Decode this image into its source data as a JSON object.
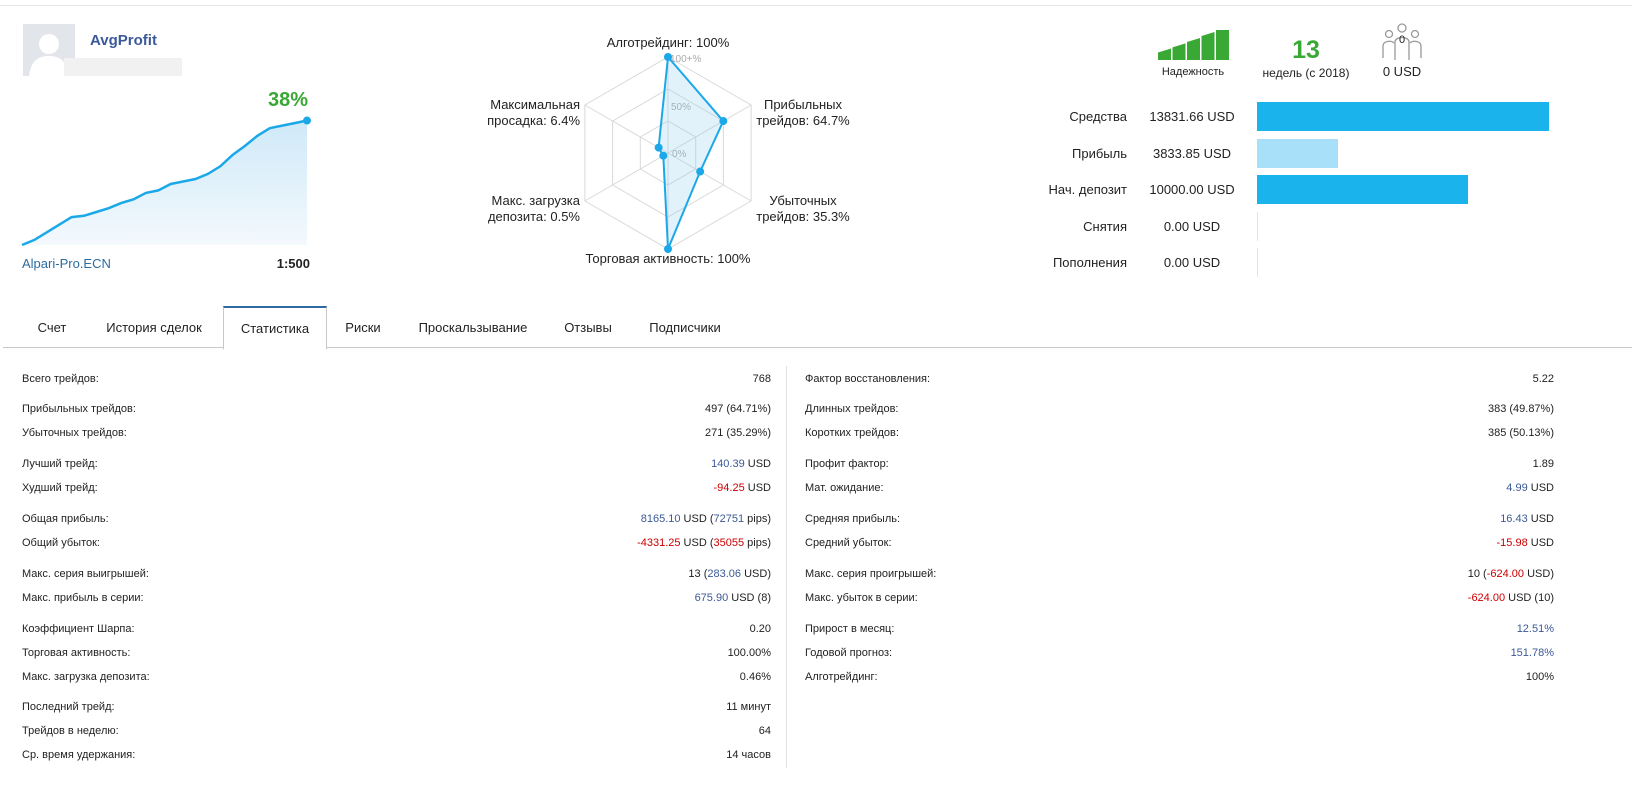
{
  "profile": {
    "name": "AvgProfit",
    "growth": "38%",
    "broker": "Alpari-Pro.ECN",
    "leverage": "1:500"
  },
  "growth_curve": {
    "values": [
      0,
      4,
      10,
      16,
      22,
      23,
      26,
      29,
      33,
      36,
      41,
      43,
      48,
      50,
      52,
      56,
      62,
      71,
      78,
      86,
      92,
      94,
      96,
      98
    ]
  },
  "radar": {
    "labels": {
      "algo": "Алготрейдинг: 100%",
      "profit_l1": "Прибыльных",
      "profit_l2": "трейдов: 64.7%",
      "loss_l1": "Убыточных",
      "loss_l2": "трейдов: 35.3%",
      "activity": "Торговая активность: 100%",
      "load_l1": "Макс. загрузка",
      "load_l2": "депозита: 0.5%",
      "dd_l1": "Максимальная",
      "dd_l2": "просадка: 6.4%"
    },
    "scale": {
      "top": "100+%",
      "mid": "50%",
      "zero": "0%"
    },
    "values": [
      1.0,
      0.647,
      0.353,
      1.0,
      0.005,
      0.064
    ]
  },
  "reliability": {
    "label": "Надежность",
    "level": 5,
    "max": 5,
    "color": "#3aa835"
  },
  "weeks": {
    "value": "13",
    "label": "недель (с 2018)"
  },
  "subscribers": {
    "count": "0",
    "label": "0 USD",
    "icon": "subscribers-icon"
  },
  "bars": [
    {
      "label": "Средства",
      "value": "13831.66 USD",
      "amount": 13831.66,
      "color": "#1bb3ec"
    },
    {
      "label": "Прибыль",
      "value": "3833.85 USD",
      "amount": 3833.85,
      "color": "#a7e0f8"
    },
    {
      "label": "Нач. депозит",
      "value": "10000.00 USD",
      "amount": 10000.0,
      "color": "#1bb3ec"
    },
    {
      "label": "Снятия",
      "value": "0.00 USD",
      "amount": 0,
      "color": "#1bb3ec"
    },
    {
      "label": "Пополнения",
      "value": "0.00 USD",
      "amount": 0,
      "color": "#1bb3ec"
    }
  ],
  "tabs": [
    "Счет",
    "История сделок",
    "Статистика",
    "Риски",
    "Проскальзывание",
    "Отзывы",
    "Подписчики"
  ],
  "active_tab": 2,
  "stats_left": [
    {
      "label": "Всего трейдов:",
      "parts": [
        {
          "t": "768"
        }
      ]
    },
    {
      "label": "Прибыльных трейдов:",
      "parts": [
        {
          "t": "497 (64.71%)"
        }
      ]
    },
    {
      "label": "Убыточных трейдов:",
      "parts": [
        {
          "t": "271 (35.29%)"
        }
      ]
    },
    {
      "label": "Лучший трейд:",
      "parts": [
        {
          "t": "140.39",
          "c": "blue"
        },
        {
          "t": " USD"
        }
      ]
    },
    {
      "label": "Худший трейд:",
      "parts": [
        {
          "t": "-94.25",
          "c": "red"
        },
        {
          "t": " USD"
        }
      ]
    },
    {
      "label": "Общая прибыль:",
      "parts": [
        {
          "t": "8165.10",
          "c": "blue"
        },
        {
          "t": " USD ("
        },
        {
          "t": "72751",
          "c": "blue"
        },
        {
          "t": " pips)"
        }
      ]
    },
    {
      "label": "Общий убыток:",
      "parts": [
        {
          "t": "-4331.25",
          "c": "red"
        },
        {
          "t": " USD ("
        },
        {
          "t": "35055",
          "c": "red"
        },
        {
          "t": " pips)"
        }
      ]
    },
    {
      "label": "Макс. серия выигрышей:",
      "parts": [
        {
          "t": "13 ("
        },
        {
          "t": "283.06",
          "c": "blue"
        },
        {
          "t": " USD)"
        }
      ]
    },
    {
      "label": "Макс. прибыль в серии:",
      "parts": [
        {
          "t": "675.90",
          "c": "blue"
        },
        {
          "t": " USD (8)"
        }
      ]
    },
    {
      "label": "Коэффициент Шарпа:",
      "parts": [
        {
          "t": "0.20"
        }
      ]
    },
    {
      "label": "Торговая активность:",
      "parts": [
        {
          "t": "100.00%"
        }
      ]
    },
    {
      "label": "Макс. загрузка депозита:",
      "parts": [
        {
          "t": "0.46%"
        }
      ]
    },
    {
      "label": "Последний трейд:",
      "parts": [
        {
          "t": "11 минут"
        }
      ]
    },
    {
      "label": "Трейдов в неделю:",
      "parts": [
        {
          "t": "64"
        }
      ]
    },
    {
      "label": "Ср. время удержания:",
      "parts": [
        {
          "t": "14 часов"
        }
      ]
    }
  ],
  "stats_right": [
    {
      "label": "Фактор восстановления:",
      "parts": [
        {
          "t": "5.22"
        }
      ]
    },
    {
      "label": "Длинных трейдов:",
      "parts": [
        {
          "t": "383 (49.87%)"
        }
      ]
    },
    {
      "label": "Коротких трейдов:",
      "parts": [
        {
          "t": "385 (50.13%)"
        }
      ]
    },
    {
      "label": "Профит фактор:",
      "parts": [
        {
          "t": "1.89"
        }
      ]
    },
    {
      "label": "Мат. ожидание:",
      "parts": [
        {
          "t": "4.99",
          "c": "blue"
        },
        {
          "t": " USD"
        }
      ]
    },
    {
      "label": "Средняя прибыль:",
      "parts": [
        {
          "t": "16.43",
          "c": "blue"
        },
        {
          "t": " USD"
        }
      ]
    },
    {
      "label": "Средний убыток:",
      "parts": [
        {
          "t": "-15.98",
          "c": "red"
        },
        {
          "t": " USD"
        }
      ]
    },
    {
      "label": "Макс. серия проигрышей:",
      "parts": [
        {
          "t": "10 ("
        },
        {
          "t": "-624.00",
          "c": "red"
        },
        {
          "t": " USD)"
        }
      ]
    },
    {
      "label": "Макс. убыток в серии:",
      "parts": [
        {
          "t": "-624.00",
          "c": "red"
        },
        {
          "t": " USD (10)"
        }
      ]
    },
    {
      "label": "Прирост в месяц:",
      "parts": [
        {
          "t": "12.51%",
          "c": "blue"
        }
      ]
    },
    {
      "label": "Годовой прогноз:",
      "parts": [
        {
          "t": "151.78%",
          "c": "blue"
        }
      ]
    },
    {
      "label": "Алготрейдинг:",
      "parts": [
        {
          "t": "100%"
        }
      ]
    }
  ]
}
